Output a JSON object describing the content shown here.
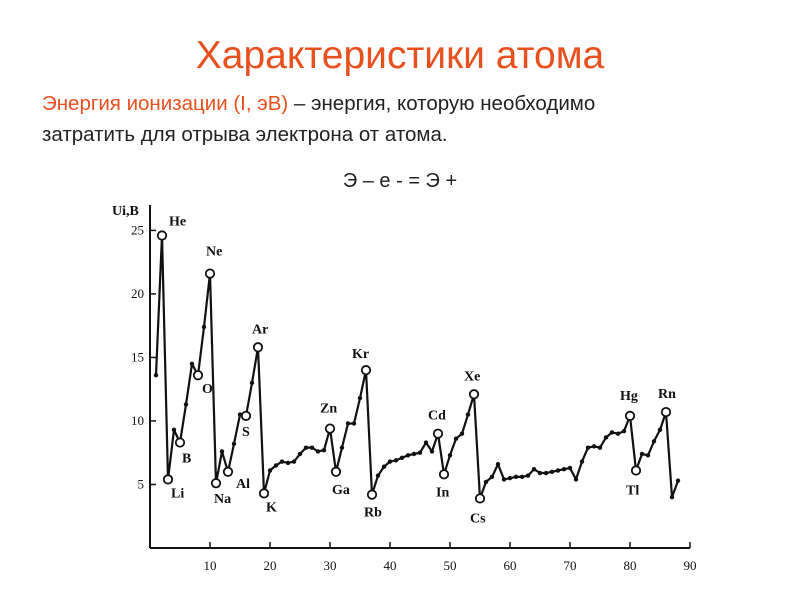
{
  "title": "Характеристики атома",
  "description": {
    "term": "Энергия ионизации (I, эВ)",
    "rest_line1": " – энергия, которую необходимо",
    "line2": "затратить для отрыва электрона от атома."
  },
  "formula": "Э – е - = Э +",
  "chart_data": {
    "type": "line",
    "ylabel": "Ui,B",
    "xlabel": "",
    "xlim": [
      0,
      90
    ],
    "ylim": [
      0,
      27
    ],
    "x_ticks": [
      10,
      20,
      30,
      40,
      50,
      60,
      70,
      80,
      90
    ],
    "y_ticks": [
      5,
      10,
      15,
      20,
      25
    ],
    "series": [
      {
        "x": [
          1,
          2,
          3,
          4,
          5,
          6,
          7,
          8,
          9,
          10,
          11,
          12,
          13,
          14,
          15,
          16,
          17,
          18,
          19,
          20,
          21,
          22,
          23,
          24,
          25,
          26,
          27,
          28,
          29,
          30,
          31,
          32,
          33,
          34,
          35,
          36,
          37,
          38,
          39,
          40,
          41,
          42,
          43,
          44,
          45,
          46,
          47,
          48,
          49,
          50,
          51,
          52,
          53,
          54,
          55,
          56,
          57,
          58,
          59,
          60,
          61,
          62,
          63,
          64,
          65,
          66,
          67,
          68,
          69,
          70,
          71,
          72,
          73,
          74,
          75,
          76,
          77,
          78,
          79,
          80,
          81,
          82,
          83,
          84,
          85,
          86,
          87,
          88
        ],
        "values": [
          13.6,
          24.6,
          5.4,
          9.3,
          8.3,
          11.3,
          14.5,
          13.6,
          17.4,
          21.6,
          5.1,
          7.6,
          6.0,
          8.2,
          10.5,
          10.4,
          13.0,
          15.8,
          4.3,
          6.1,
          6.5,
          6.8,
          6.7,
          6.8,
          7.4,
          7.9,
          7.9,
          7.6,
          7.7,
          9.4,
          6.0,
          7.9,
          9.8,
          9.8,
          11.8,
          14.0,
          4.2,
          5.7,
          6.4,
          6.8,
          6.9,
          7.1,
          7.3,
          7.4,
          7.5,
          8.3,
          7.6,
          9.0,
          5.8,
          7.3,
          8.6,
          9.0,
          10.5,
          12.1,
          3.9,
          5.2,
          5.6,
          6.6,
          5.4,
          5.5,
          5.6,
          5.6,
          5.7,
          6.2,
          5.9,
          5.9,
          6.0,
          6.1,
          6.2,
          6.3,
          5.4,
          6.8,
          7.9,
          8.0,
          7.9,
          8.7,
          9.1,
          9.0,
          9.2,
          10.4,
          6.1,
          7.4,
          7.3,
          8.4,
          9.3,
          10.7,
          4.0,
          5.3
        ]
      }
    ],
    "annotations": [
      {
        "label": "He",
        "x": 2
      },
      {
        "label": "Li",
        "x": 3
      },
      {
        "label": "B",
        "x": 5
      },
      {
        "label": "O",
        "x": 8
      },
      {
        "label": "Ne",
        "x": 10
      },
      {
        "label": "Na",
        "x": 11
      },
      {
        "label": "Al",
        "x": 13
      },
      {
        "label": "S",
        "x": 16
      },
      {
        "label": "Ar",
        "x": 18
      },
      {
        "label": "K",
        "x": 19
      },
      {
        "label": "Zn",
        "x": 30
      },
      {
        "label": "Ga",
        "x": 31
      },
      {
        "label": "Kr",
        "x": 36
      },
      {
        "label": "Rb",
        "x": 37
      },
      {
        "label": "Cd",
        "x": 48
      },
      {
        "label": "In",
        "x": 49
      },
      {
        "label": "Xe",
        "x": 54
      },
      {
        "label": "Cs",
        "x": 55
      },
      {
        "label": "Hg",
        "x": 80
      },
      {
        "label": "Tl",
        "x": 81
      },
      {
        "label": "Rn",
        "x": 86
      }
    ]
  }
}
